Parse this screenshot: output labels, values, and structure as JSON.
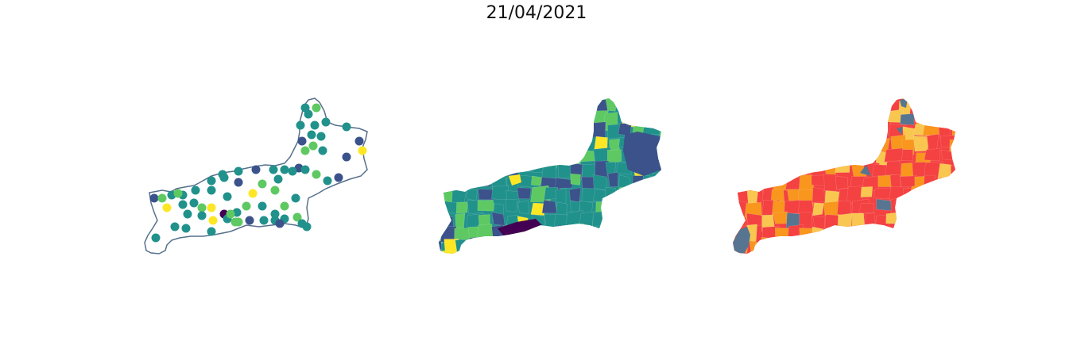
{
  "title": "21/04/2021",
  "colors": {
    "outline": "#56708c",
    "viridis": [
      "#440154",
      "#3b528b",
      "#21918c",
      "#5ec962",
      "#fde725"
    ],
    "risk": [
      "#f44141",
      "#f8961e",
      "#f9c74f",
      "#577590"
    ]
  },
  "maps": [
    {
      "name": "points-map",
      "style": "scatter-with-outline"
    },
    {
      "name": "viridis-choropleth",
      "style": "choropleth"
    },
    {
      "name": "risk-choropleth",
      "style": "choropleth"
    }
  ]
}
